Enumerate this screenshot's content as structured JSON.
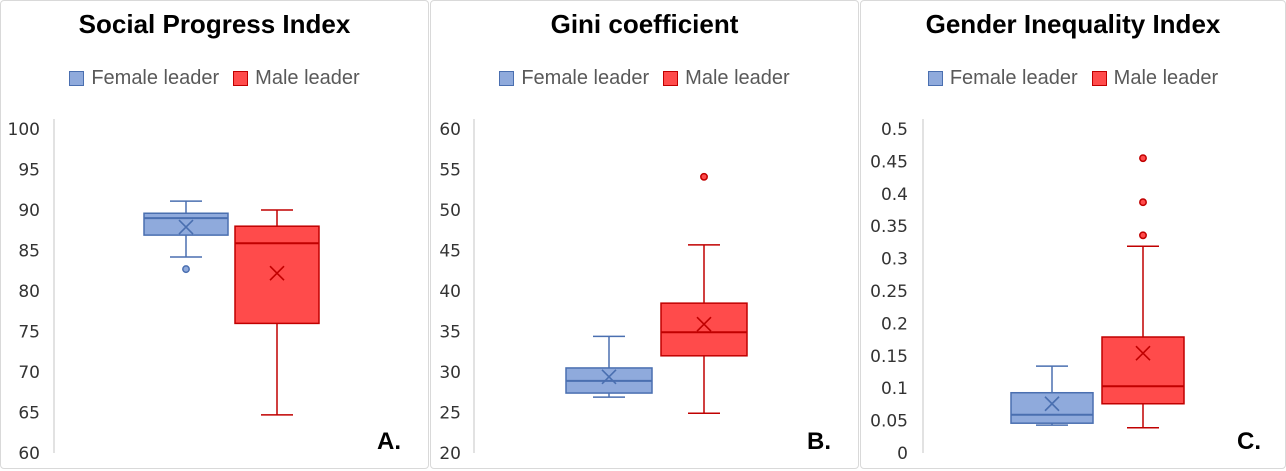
{
  "colors": {
    "female_fill": "#8faadc",
    "female_stroke": "#4a6fb0",
    "male_fill": "#ff4b4b",
    "male_stroke": "#c00000"
  },
  "chart_data": [
    {
      "type": "box",
      "title": "Social Progress Index",
      "panel_label": "A.",
      "ylim": [
        60,
        100
      ],
      "yticks": [
        "100",
        "95",
        "90",
        "85",
        "80",
        "75",
        "70",
        "65",
        "60"
      ],
      "ytick_values": [
        100,
        95,
        90,
        85,
        80,
        75,
        70,
        65,
        60
      ],
      "legend": [
        "Female leader",
        "Male leader"
      ],
      "legend_position": "top",
      "grid": false,
      "series": [
        {
          "name": "Female leader",
          "min": 84.2,
          "q1": 86.9,
          "median": 89.0,
          "q3": 89.6,
          "max": 91.1,
          "mean": 87.9,
          "outliers": [
            82.7
          ]
        },
        {
          "name": "Male leader",
          "min": 64.7,
          "q1": 76.0,
          "median": 85.9,
          "q3": 88.0,
          "max": 90.0,
          "mean": 82.2,
          "outliers": []
        }
      ]
    },
    {
      "type": "box",
      "title": "Gini coefficient",
      "panel_label": "B.",
      "ylim": [
        20,
        60
      ],
      "yticks": [
        "60",
        "55",
        "50",
        "45",
        "40",
        "35",
        "30",
        "25",
        "20"
      ],
      "ytick_values": [
        60,
        55,
        50,
        45,
        40,
        35,
        30,
        25,
        20
      ],
      "legend": [
        "Female leader",
        "Male leader"
      ],
      "legend_position": "top",
      "grid": false,
      "series": [
        {
          "name": "Female leader",
          "min": 26.9,
          "q1": 27.4,
          "median": 28.9,
          "q3": 30.5,
          "max": 34.4,
          "mean": 29.4,
          "outliers": []
        },
        {
          "name": "Male leader",
          "min": 24.9,
          "q1": 32.0,
          "median": 34.9,
          "q3": 38.5,
          "max": 45.7,
          "mean": 35.9,
          "outliers": [
            54.1
          ]
        }
      ]
    },
    {
      "type": "box",
      "title": "Gender Inequality Index",
      "panel_label": "C.",
      "ylim": [
        0,
        0.5
      ],
      "yticks": [
        "0.5",
        "0.45",
        "0.4",
        "0.35",
        "0.3",
        "0.25",
        "0.2",
        "0.15",
        "0.1",
        "0.05",
        "0"
      ],
      "ytick_values": [
        0.5,
        0.45,
        0.4,
        0.35,
        0.3,
        0.25,
        0.2,
        0.15,
        0.1,
        0.05,
        0
      ],
      "legend": [
        "Female leader",
        "Male leader"
      ],
      "legend_position": "top",
      "grid": false,
      "series": [
        {
          "name": "Female leader",
          "min": 0.043,
          "q1": 0.046,
          "median": 0.059,
          "q3": 0.093,
          "max": 0.134,
          "mean": 0.076,
          "outliers": []
        },
        {
          "name": "Male leader",
          "min": 0.039,
          "q1": 0.076,
          "median": 0.103,
          "q3": 0.179,
          "max": 0.319,
          "mean": 0.154,
          "outliers": [
            0.336,
            0.387,
            0.455
          ]
        }
      ]
    }
  ]
}
